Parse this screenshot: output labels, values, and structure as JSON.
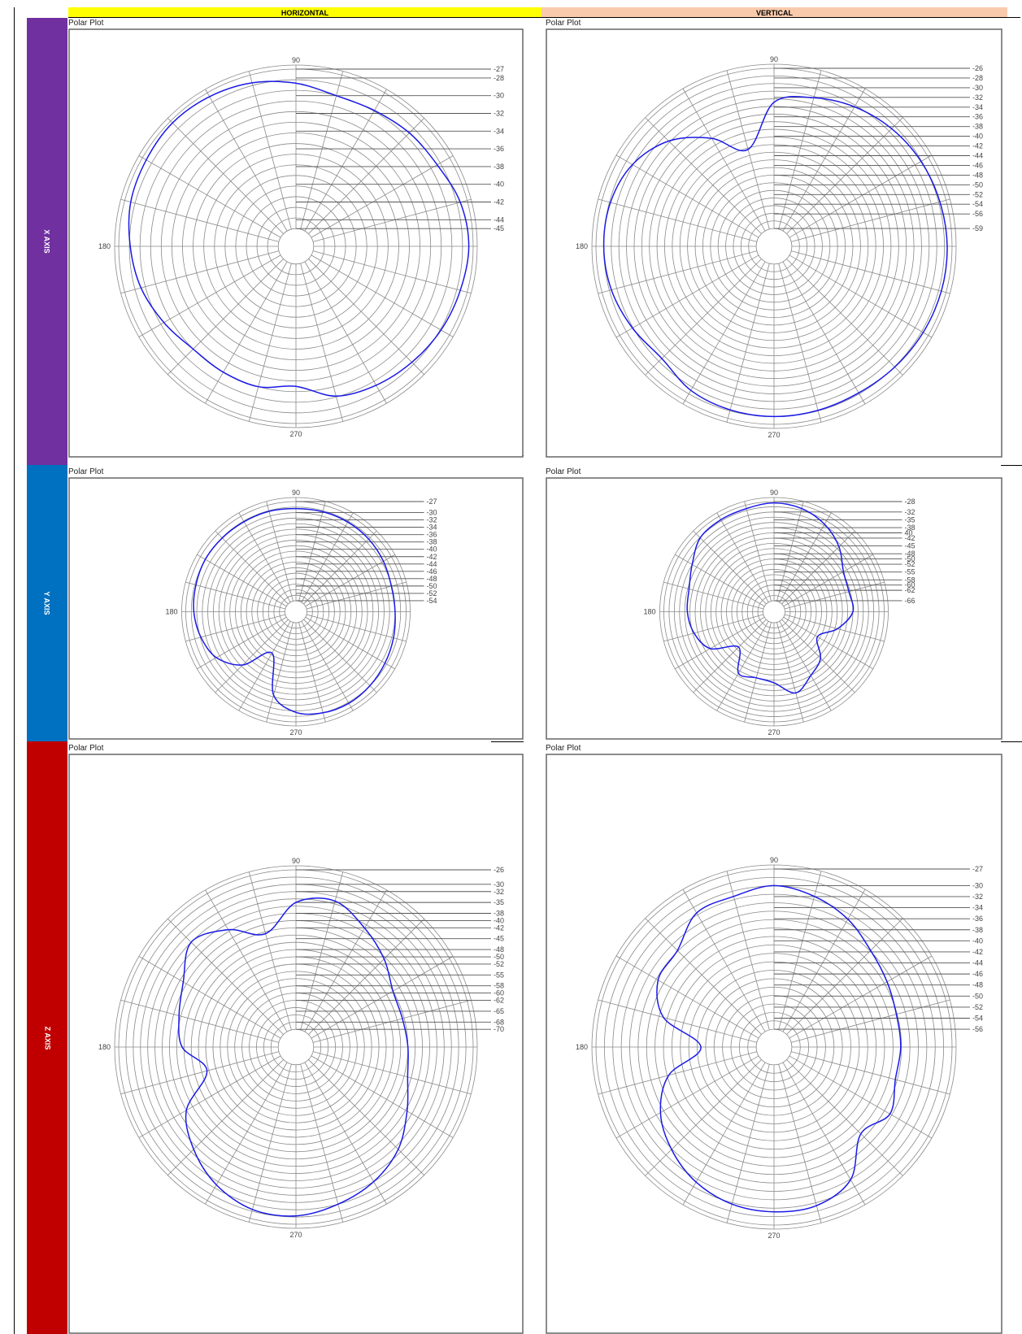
{
  "headers": {
    "horizontal": "HORIZONTAL",
    "vertical": "VERTICAL",
    "horizontal_color": "#ffff00",
    "vertical_color": "#f8cbad"
  },
  "rows": [
    {
      "label": "X AXIS",
      "color": "#7030a0"
    },
    {
      "label": "Y AXIS",
      "color": "#0070c0"
    },
    {
      "label": "Z AXIS",
      "color": "#c00000"
    }
  ],
  "panel_title": "Polar Plot",
  "angle_labels": {
    "top": "90",
    "left": "180",
    "bottom": "270"
  },
  "trace_color": "#1a1ae6",
  "chart_data": [
    {
      "type": "polar",
      "row": "X AXIS",
      "column": "HORIZONTAL",
      "title": "Polar Plot",
      "ticks": [
        "-27",
        "-28",
        "-30",
        "-32",
        "-34",
        "-36",
        "-38",
        "-40",
        "-42",
        "-44",
        "-45"
      ],
      "rmax": -27,
      "rmin": -45,
      "theta": [
        0,
        15,
        30,
        45,
        60,
        75,
        90,
        105,
        120,
        135,
        150,
        165,
        180,
        195,
        210,
        225,
        240,
        255,
        270,
        285,
        300,
        315,
        330,
        345
      ],
      "r": [
        -27.5,
        -27.8,
        -28.6,
        -28.9,
        -29.3,
        -29.4,
        -28.6,
        -27.9,
        -27.5,
        -27.3,
        -27.5,
        -27.7,
        -28.3,
        -28.9,
        -29.8,
        -30.6,
        -30.6,
        -30.6,
        -31.2,
        -29.5,
        -28.9,
        -28.5,
        -28.1,
        -27.8
      ]
    },
    {
      "type": "polar",
      "row": "X AXIS",
      "column": "VERTICAL",
      "title": "Polar Plot",
      "ticks": [
        "-26",
        "-28",
        "-30",
        "-32",
        "-34",
        "-36",
        "-38",
        "-40",
        "-42",
        "-44",
        "-46",
        "-48",
        "-50",
        "-52",
        "-54",
        "-56",
        "-59"
      ],
      "rmax": -26,
      "rmin": -59,
      "theta": [
        0,
        15,
        30,
        45,
        60,
        75,
        90,
        105,
        120,
        135,
        150,
        165,
        180,
        195,
        210,
        225,
        240,
        255,
        270,
        285,
        300,
        315,
        330,
        345
      ],
      "r": [
        -27,
        -27.3,
        -27.7,
        -28.4,
        -29.5,
        -31,
        -33,
        -42,
        -37,
        -32,
        -29,
        -27.8,
        -27.6,
        -28,
        -29,
        -30,
        -28.4,
        -27.8,
        -27.6,
        -27.7,
        -27.8,
        -27.5,
        -27.2,
        -27
      ]
    },
    {
      "type": "polar",
      "row": "Y AXIS",
      "column": "HORIZONTAL",
      "title": "Polar Plot",
      "ticks": [
        "-27",
        "-30",
        "-32",
        "-34",
        "-36",
        "-38",
        "-40",
        "-42",
        "-44",
        "-46",
        "-48",
        "-50",
        "-52",
        "-54"
      ],
      "rmax": -27,
      "rmin": -54,
      "theta": [
        0,
        15,
        30,
        45,
        60,
        75,
        90,
        105,
        120,
        135,
        150,
        165,
        180,
        195,
        210,
        225,
        240,
        255,
        270,
        285,
        300,
        315,
        330,
        345
      ],
      "r": [
        -30,
        -30.1,
        -29.5,
        -29,
        -28.8,
        -28.8,
        -28.9,
        -28.7,
        -28.7,
        -28.6,
        -28.5,
        -28.8,
        -29.2,
        -30.2,
        -32,
        -36.5,
        -44,
        -33.5,
        -29.6,
        -28.5,
        -28.2,
        -28.5,
        -29,
        -29.5
      ]
    },
    {
      "type": "polar",
      "row": "Y AXIS",
      "column": "VERTICAL",
      "title": "Polar Plot",
      "ticks": [
        "-28",
        "-32",
        "-35",
        "-38",
        "40",
        "-42",
        "-45",
        "-48",
        "-50",
        "-52",
        "-55",
        "-58",
        "-60",
        "-62",
        "-66"
      ],
      "rmax": -28,
      "rmin": -66,
      "theta": [
        0,
        15,
        30,
        45,
        60,
        75,
        90,
        105,
        120,
        135,
        150,
        165,
        180,
        195,
        210,
        225,
        240,
        255,
        270,
        285,
        300,
        315,
        330,
        345
      ],
      "r": [
        -40,
        -40.5,
        -39.5,
        -35,
        -31.5,
        -29.3,
        -28.5,
        -29.3,
        -29.5,
        -30.2,
        -34,
        -36.5,
        -37,
        -38.5,
        -42,
        -51,
        -43,
        -44,
        -43,
        -38,
        -42,
        -45,
        -51,
        -45
      ]
    },
    {
      "type": "polar",
      "row": "Z AXIS",
      "column": "HORIZONTAL",
      "title": "Polar Plot",
      "ticks": [
        "-26",
        "-30",
        "-32",
        "-35",
        "-38",
        "-40",
        "-42",
        "-45",
        "-48",
        "-50",
        "-52",
        "-55",
        "-58",
        "-60",
        "-62",
        "-65",
        "-68",
        "-70"
      ],
      "rmax": -26,
      "rmin": -70,
      "theta": [
        0,
        15,
        30,
        45,
        60,
        75,
        90,
        105,
        120,
        135,
        150,
        165,
        180,
        195,
        210,
        225,
        240,
        255,
        270,
        285,
        300,
        315,
        330,
        345
      ],
      "r": [
        -44,
        -44.5,
        -44,
        -40.5,
        -37,
        -33.2,
        -35,
        -42.5,
        -37.5,
        -34,
        -39,
        -41.5,
        -43.5,
        -49.5,
        -40,
        -35,
        -31,
        -28.5,
        -28.3,
        -30,
        -32,
        -35,
        -39.5,
        -43
      ]
    },
    {
      "type": "polar",
      "row": "Z AXIS",
      "column": "VERTICAL",
      "title": "Polar Plot",
      "ticks": [
        "-27",
        "-30",
        "-32",
        "-34",
        "-36",
        "-38",
        "-40",
        "-42",
        "-44",
        "-46",
        "-48",
        "-50",
        "-52",
        "-54",
        "-56"
      ],
      "rmax": -27,
      "rmin": -56,
      "theta": [
        0,
        15,
        30,
        45,
        60,
        75,
        90,
        105,
        120,
        135,
        150,
        165,
        180,
        195,
        210,
        225,
        240,
        255,
        270,
        285,
        300,
        315,
        330,
        345
      ],
      "r": [
        -36.3,
        -36.3,
        -35.6,
        -34.5,
        -32.5,
        -31,
        -30,
        -31,
        -31.2,
        -34.5,
        -35,
        -38.5,
        -46,
        -39.5,
        -35.5,
        -33,
        -31,
        -29.8,
        -29.4,
        -29.5,
        -31.5,
        -37,
        -35,
        -36.5
      ]
    }
  ]
}
